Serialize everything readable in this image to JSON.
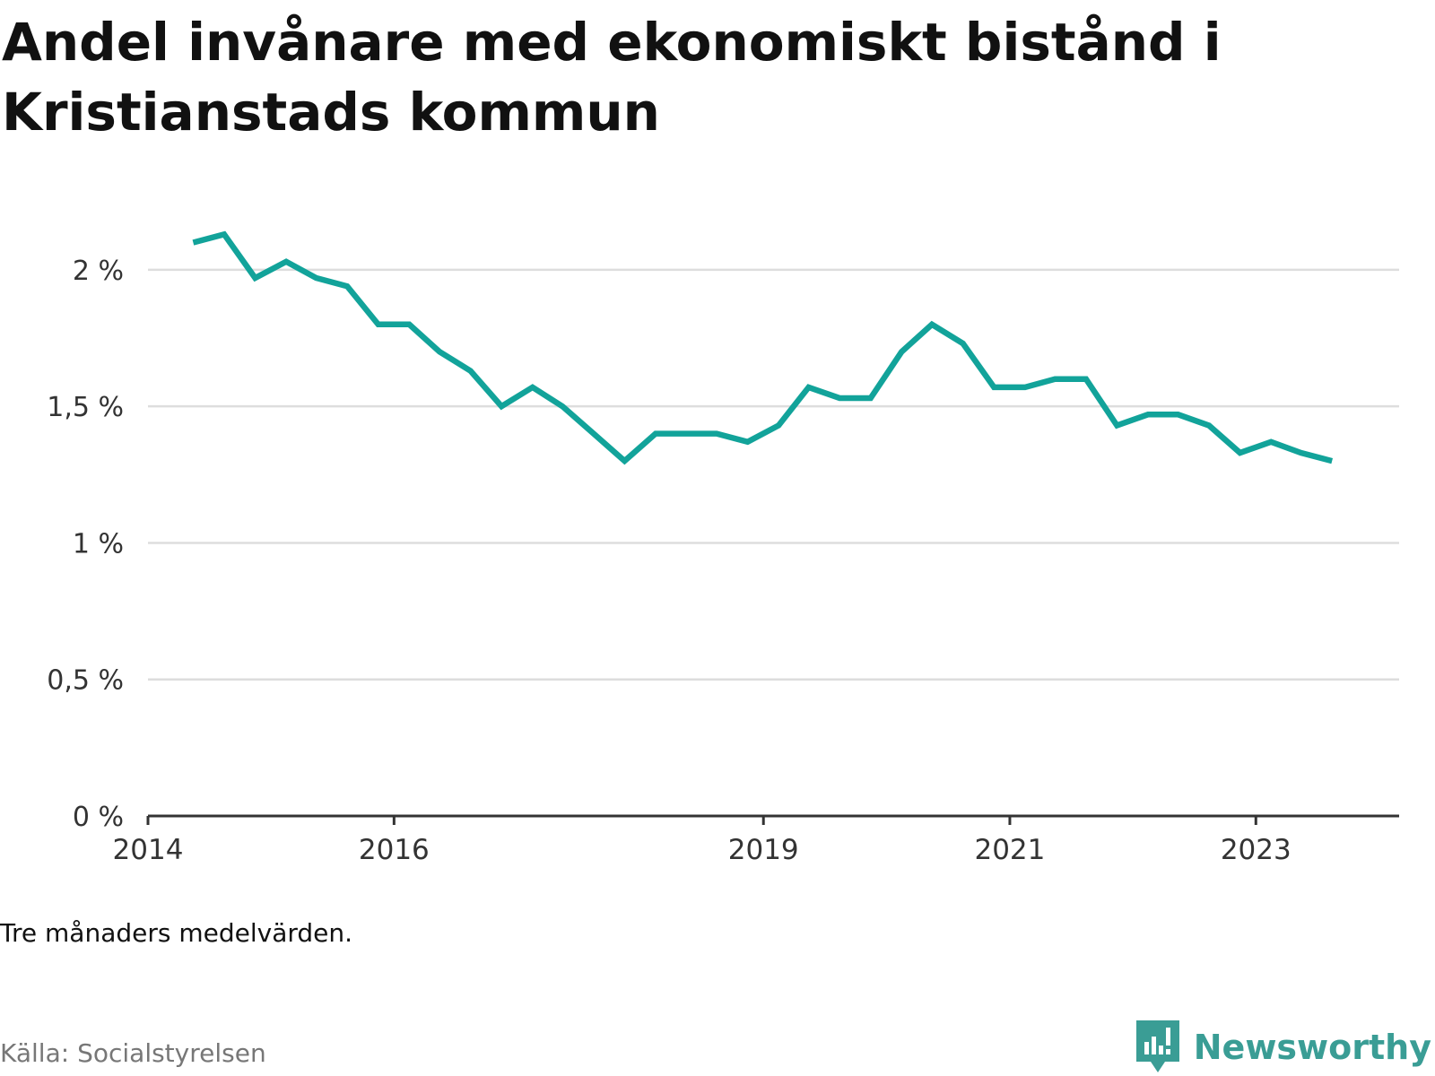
{
  "title": "Andel invånare med ekonomiskt bistånd i Kristianstads kommun",
  "note": "Tre månaders medelvärden.",
  "source": "Källa: Socialstyrelsen",
  "brand": {
    "name": "Newsworthy",
    "icon": "newsworthy-logo-icon",
    "color": "#3a9d95"
  },
  "colors": {
    "line": "#12a39a",
    "grid": "#dddddd",
    "axis": "#333333"
  },
  "chart_data": {
    "type": "line",
    "title": "Andel invånare med ekonomiskt bistånd i Kristianstads kommun",
    "xlabel": "",
    "ylabel": "",
    "ylim": [
      0,
      2.2
    ],
    "yticks": [
      0,
      0.5,
      1,
      1.5,
      2
    ],
    "ytick_labels": [
      "0 %",
      "0,5 %",
      "1 %",
      "1,5 %",
      "2 %"
    ],
    "xlim": [
      "2014-01-01",
      "2024-03-01"
    ],
    "xticks": [
      "2014-01-01",
      "2016-01-01",
      "2019-01-01",
      "2021-01-01",
      "2023-01-01"
    ],
    "xtick_labels": [
      "2014",
      "2016",
      "2019",
      "2021",
      "2023"
    ],
    "grid": true,
    "series": [
      {
        "values": [
          {
            "x": "2014-05",
            "y": 2.1
          },
          {
            "x": "2014-08",
            "y": 2.13
          },
          {
            "x": "2014-11",
            "y": 1.97
          },
          {
            "x": "2015-02",
            "y": 2.03
          },
          {
            "x": "2015-05",
            "y": 1.97
          },
          {
            "x": "2015-08",
            "y": 1.94
          },
          {
            "x": "2015-11",
            "y": 1.8
          },
          {
            "x": "2016-02",
            "y": 1.8
          },
          {
            "x": "2016-05",
            "y": 1.7
          },
          {
            "x": "2016-08",
            "y": 1.63
          },
          {
            "x": "2016-11",
            "y": 1.5
          },
          {
            "x": "2017-02",
            "y": 1.57
          },
          {
            "x": "2017-05",
            "y": 1.5
          },
          {
            "x": "2017-08",
            "y": 1.4
          },
          {
            "x": "2017-11",
            "y": 1.3
          },
          {
            "x": "2018-02",
            "y": 1.4
          },
          {
            "x": "2018-05",
            "y": 1.4
          },
          {
            "x": "2018-08",
            "y": 1.4
          },
          {
            "x": "2018-11",
            "y": 1.37
          },
          {
            "x": "2019-02",
            "y": 1.43
          },
          {
            "x": "2019-05",
            "y": 1.57
          },
          {
            "x": "2019-08",
            "y": 1.53
          },
          {
            "x": "2019-11",
            "y": 1.53
          },
          {
            "x": "2020-02",
            "y": 1.7
          },
          {
            "x": "2020-05",
            "y": 1.8
          },
          {
            "x": "2020-08",
            "y": 1.73
          },
          {
            "x": "2020-11",
            "y": 1.57
          },
          {
            "x": "2021-02",
            "y": 1.57
          },
          {
            "x": "2021-05",
            "y": 1.6
          },
          {
            "x": "2021-08",
            "y": 1.6
          },
          {
            "x": "2021-11",
            "y": 1.43
          },
          {
            "x": "2022-02",
            "y": 1.47
          },
          {
            "x": "2022-05",
            "y": 1.47
          },
          {
            "x": "2022-08",
            "y": 1.43
          },
          {
            "x": "2022-11",
            "y": 1.33
          },
          {
            "x": "2023-02",
            "y": 1.37
          },
          {
            "x": "2023-05",
            "y": 1.33
          },
          {
            "x": "2023-08",
            "y": 1.3
          }
        ]
      }
    ]
  }
}
